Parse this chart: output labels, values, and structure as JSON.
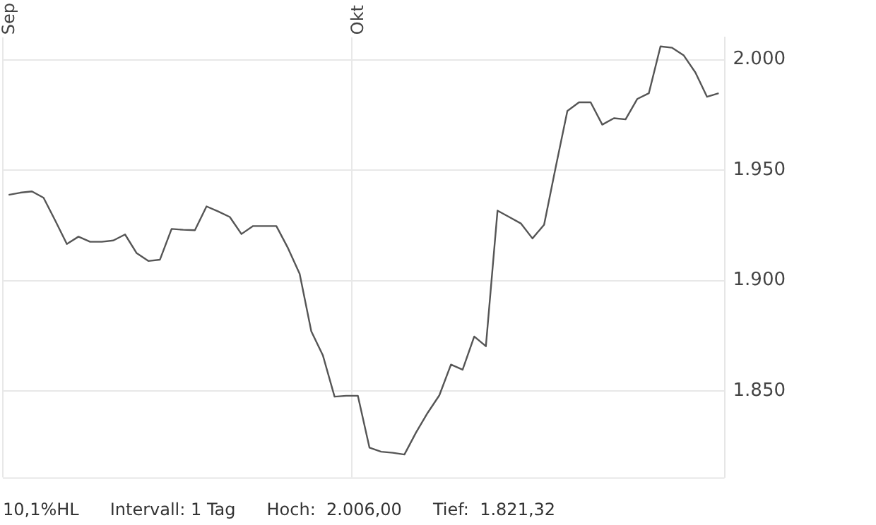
{
  "chart_data": {
    "type": "line",
    "categories": [
      "Sep",
      null,
      null,
      null,
      null,
      null,
      null,
      null,
      null,
      null,
      null,
      null,
      null,
      null,
      null,
      null,
      null,
      null,
      null,
      null,
      null,
      null,
      null,
      null,
      null,
      null,
      null,
      null,
      null,
      null,
      "Okt",
      null,
      null,
      null,
      null,
      null,
      null,
      null,
      null,
      null,
      null,
      null,
      null,
      null,
      null,
      null,
      null,
      null,
      null,
      null,
      null,
      null,
      null,
      null,
      null,
      null,
      null,
      null,
      null,
      null,
      null,
      null
    ],
    "series": [
      {
        "color": "#555555",
        "values": [
          1938.8,
          1939.8,
          1940.4,
          1937.5,
          1927.2,
          1916.6,
          1919.9,
          1917.6,
          1917.6,
          1918.2,
          1920.9,
          1912.4,
          1908.9,
          1909.5,
          1923.4,
          1923.0,
          1922.8,
          1933.6,
          1931.3,
          1928.8,
          1921.1,
          1924.7,
          1924.7,
          1924.7,
          1914.7,
          1903.1,
          1877.1,
          1866.1,
          1847.5,
          1847.9,
          1847.9,
          1824.4,
          1822.6,
          1822.1,
          1821.3,
          1831.3,
          1840.2,
          1848.1,
          1862.0,
          1859.7,
          1874.7,
          1870.3,
          1931.7,
          1928.8,
          1925.9,
          1919.1,
          1925.3,
          1951.4,
          1976.8,
          1980.7,
          1980.7,
          1970.6,
          1973.5,
          1973.0,
          1982.2,
          1984.8,
          2006.0,
          2005.4,
          2001.9,
          1994.2,
          1983.2,
          1984.8
        ]
      }
    ],
    "ylim": [
      1811,
      2010
    ],
    "yticks": [
      {
        "value": 1850,
        "label": "1.850"
      },
      {
        "value": 1900,
        "label": "1.900"
      },
      {
        "value": 1950,
        "label": "1.950"
      },
      {
        "value": 2000,
        "label": "2.000"
      }
    ],
    "grid": true,
    "legend": false,
    "marker": "none",
    "line_style": "solid",
    "annotations": [
      "10,1%HL",
      "Intervall: 1 Tag",
      "Hoch:  2.006,00",
      "Tief:  1.821,32"
    ]
  }
}
